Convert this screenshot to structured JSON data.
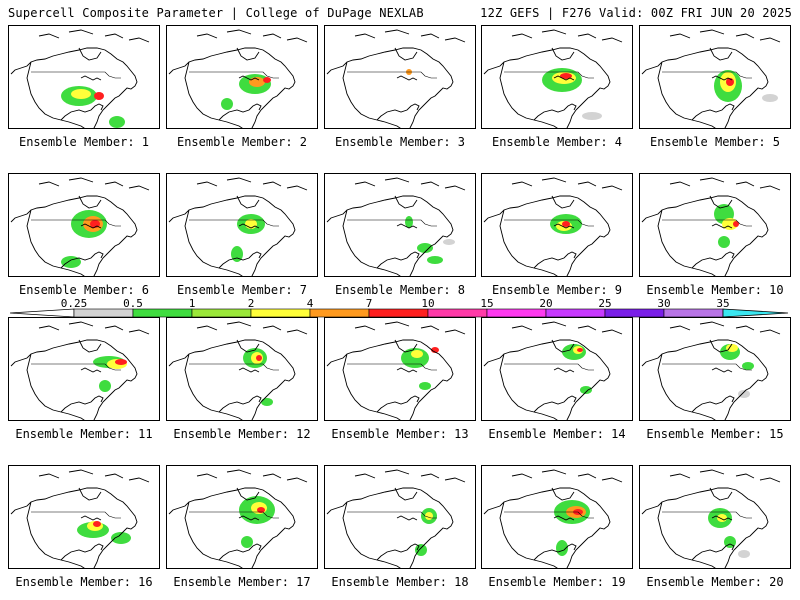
{
  "header": {
    "title": "Supercell Composite Parameter | College of DuPage NEXLAB",
    "run_info": "12Z GEFS | F276 Valid: 00Z FRI JUN 20 2025"
  },
  "legend": {
    "labels": [
      "0.25",
      "0.5",
      "1",
      "2",
      "4",
      "7",
      "10",
      "15",
      "20",
      "25",
      "30",
      "35"
    ],
    "colors": [
      "#ffffff",
      "#d3d3d3",
      "#3fdc3f",
      "#9be83a",
      "#ffff3a",
      "#ff9a1f",
      "#ff1f1f",
      "#ff3aa8",
      "#ff3af0",
      "#c83aff",
      "#7a1fe8",
      "#b874e6",
      "#3ae6f0"
    ]
  },
  "panels": [
    {
      "label": "Ensemble Member: 1"
    },
    {
      "label": "Ensemble Member: 2"
    },
    {
      "label": "Ensemble Member: 3"
    },
    {
      "label": "Ensemble Member: 4"
    },
    {
      "label": "Ensemble Member: 5"
    },
    {
      "label": "Ensemble Member: 6"
    },
    {
      "label": "Ensemble Member: 7"
    },
    {
      "label": "Ensemble Member: 8"
    },
    {
      "label": "Ensemble Member: 9"
    },
    {
      "label": "Ensemble Member: 10"
    },
    {
      "label": "Ensemble Member: 11"
    },
    {
      "label": "Ensemble Member: 12"
    },
    {
      "label": "Ensemble Member: 13"
    },
    {
      "label": "Ensemble Member: 14"
    },
    {
      "label": "Ensemble Member: 15"
    },
    {
      "label": "Ensemble Member: 16"
    },
    {
      "label": "Ensemble Member: 17"
    },
    {
      "label": "Ensemble Member: 18"
    },
    {
      "label": "Ensemble Member: 19"
    },
    {
      "label": "Ensemble Member: 20"
    }
  ]
}
